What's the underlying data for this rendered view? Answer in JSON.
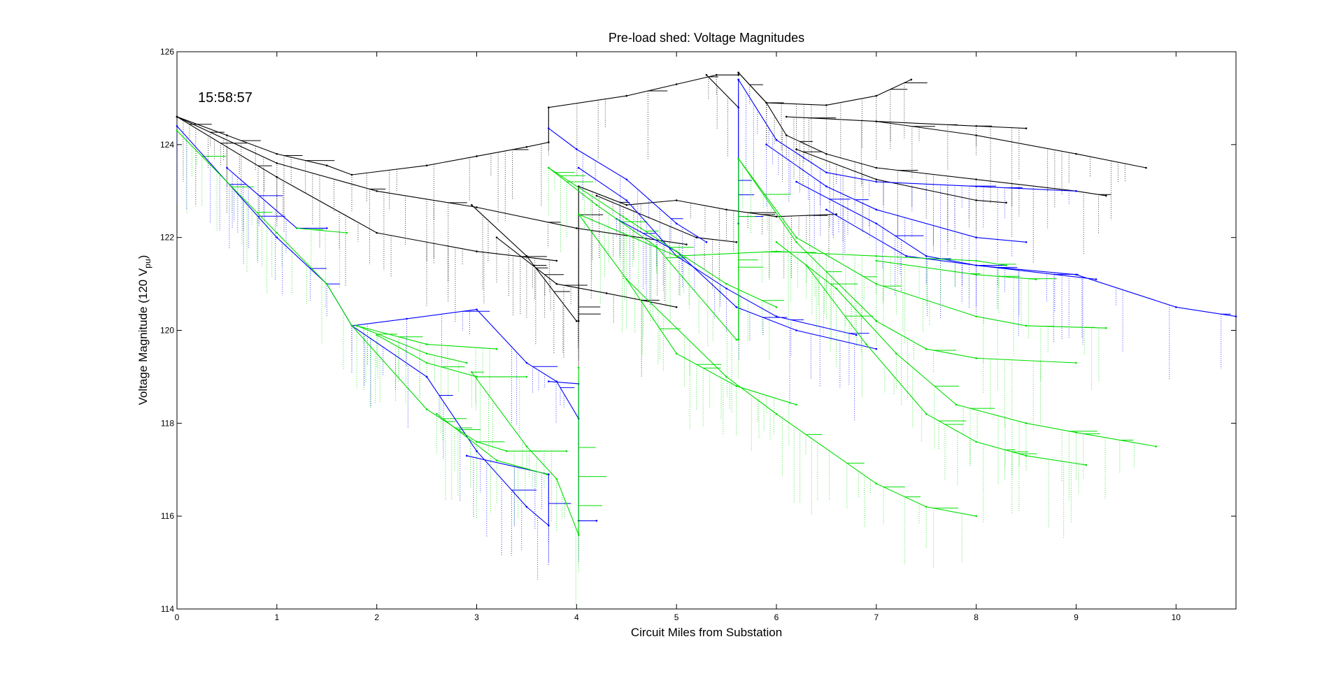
{
  "chart_data": {
    "type": "line",
    "title": "Pre-load shed:  Voltage Magnitudes",
    "xlabel": "Circuit Miles from Substation",
    "ylabel_main": "Voltage Magnitude (120 V",
    "ylabel_sub": "pu",
    "ylabel_end": ")",
    "annotation": "15:58:57",
    "xlim": [
      0,
      10.6
    ],
    "ylim": [
      114,
      126
    ],
    "xticks": [
      0,
      1,
      2,
      3,
      4,
      5,
      6,
      7,
      8,
      9,
      10
    ],
    "yticks": [
      114,
      116,
      118,
      120,
      122,
      124,
      126
    ],
    "colors": {
      "black": "#000000",
      "blue": "#0000ff",
      "green": "#00dd00"
    },
    "series": [
      {
        "color": "black",
        "points": [
          [
            0,
            124.6
          ],
          [
            0.5,
            124.2
          ],
          [
            1,
            123.8
          ],
          [
            1.5,
            123.55
          ],
          [
            1.75,
            123.35
          ],
          [
            2.5,
            123.55
          ],
          [
            3,
            123.75
          ],
          [
            3.5,
            123.95
          ],
          [
            3.72,
            124.05
          ],
          [
            3.72,
            124.8
          ],
          [
            4.5,
            125.05
          ],
          [
            5,
            125.3
          ],
          [
            5.4,
            125.5
          ],
          [
            5.62,
            125.5
          ],
          [
            5.62,
            125.55
          ]
        ]
      },
      {
        "color": "black",
        "points": [
          [
            5.3,
            125.5
          ],
          [
            5.62,
            124.8
          ]
        ]
      },
      {
        "color": "black",
        "points": [
          [
            5.62,
            125.55
          ],
          [
            5.9,
            124.9
          ],
          [
            6.5,
            124.85
          ],
          [
            7,
            125.05
          ],
          [
            7.35,
            125.4
          ]
        ]
      },
      {
        "color": "black",
        "points": [
          [
            5.62,
            125.55
          ],
          [
            5.9,
            124.9
          ],
          [
            6.1,
            124.2
          ],
          [
            6.5,
            123.8
          ],
          [
            7,
            123.5
          ],
          [
            8,
            123.25
          ],
          [
            9,
            123.0
          ],
          [
            9.3,
            122.9
          ]
        ]
      },
      {
        "color": "black",
        "points": [
          [
            6.1,
            124.6
          ],
          [
            7,
            124.5
          ],
          [
            8,
            124.4
          ],
          [
            8.5,
            124.35
          ]
        ]
      },
      {
        "color": "black",
        "points": [
          [
            7,
            124.5
          ],
          [
            8,
            124.2
          ],
          [
            9,
            123.8
          ],
          [
            9.7,
            123.5
          ]
        ]
      },
      {
        "color": "black",
        "points": [
          [
            6.2,
            123.9
          ],
          [
            7,
            123.25
          ],
          [
            8,
            122.8
          ],
          [
            8.3,
            122.75
          ]
        ]
      },
      {
        "color": "black",
        "points": [
          [
            0,
            124.6
          ],
          [
            1,
            123.6
          ],
          [
            2,
            123.0
          ],
          [
            3,
            122.65
          ],
          [
            4,
            122.2
          ],
          [
            5.1,
            121.85
          ]
        ]
      },
      {
        "color": "black",
        "points": [
          [
            0,
            124.6
          ],
          [
            1,
            123.3
          ],
          [
            2,
            122.1
          ],
          [
            3,
            121.7
          ],
          [
            3.8,
            121.5
          ]
        ]
      },
      {
        "color": "black",
        "points": [
          [
            2.95,
            122.7
          ],
          [
            3.5,
            121.6
          ],
          [
            4.0,
            120.2
          ]
        ]
      },
      {
        "color": "black",
        "points": [
          [
            3.2,
            122.0
          ],
          [
            3.8,
            121.0
          ],
          [
            4.3,
            120.8
          ],
          [
            5.0,
            120.5
          ]
        ]
      },
      {
        "color": "black",
        "points": [
          [
            4.02,
            120.2
          ],
          [
            4.02,
            123.1
          ],
          [
            4.5,
            122.7
          ],
          [
            5,
            122.8
          ],
          [
            5.5,
            122.6
          ],
          [
            6,
            122.45
          ],
          [
            6.6,
            122.5
          ]
        ]
      },
      {
        "color": "black",
        "points": [
          [
            4.2,
            122.9
          ],
          [
            5.2,
            122.0
          ],
          [
            5.6,
            121.9
          ]
        ]
      },
      {
        "color": "blue",
        "points": [
          [
            0,
            124.4
          ],
          [
            1,
            122.0
          ],
          [
            1.5,
            121.0
          ],
          [
            1.75,
            120.1
          ],
          [
            2.5,
            119.0
          ],
          [
            3,
            117.4
          ],
          [
            3.5,
            116.2
          ],
          [
            3.72,
            115.8
          ],
          [
            3.72,
            116.9
          ]
        ]
      },
      {
        "color": "blue",
        "points": [
          [
            0.5,
            123.5
          ],
          [
            1.2,
            122.2
          ],
          [
            1.5,
            122.2
          ]
        ]
      },
      {
        "color": "blue",
        "points": [
          [
            1.75,
            120.1
          ],
          [
            2.3,
            120.25
          ],
          [
            3,
            120.45
          ],
          [
            3.5,
            119.3
          ],
          [
            3.8,
            118.9
          ],
          [
            4.02,
            118.1
          ]
        ]
      },
      {
        "color": "blue",
        "points": [
          [
            2.9,
            117.3
          ],
          [
            3.72,
            116.9
          ]
        ]
      },
      {
        "color": "blue",
        "points": [
          [
            3.72,
            118.9
          ],
          [
            4.02,
            118.85
          ],
          [
            4.02,
            115.9
          ],
          [
            4.2,
            115.9
          ]
        ]
      },
      {
        "color": "blue",
        "points": [
          [
            3.72,
            124.35
          ],
          [
            4.0,
            123.9
          ],
          [
            4.5,
            123.25
          ],
          [
            5,
            122.3
          ],
          [
            5.3,
            121.9
          ]
        ]
      },
      {
        "color": "blue",
        "points": [
          [
            4.02,
            123.5
          ],
          [
            4.5,
            122.8
          ],
          [
            5,
            121.6
          ],
          [
            5.5,
            120.9
          ],
          [
            6,
            120.3
          ],
          [
            6.8,
            119.9
          ]
        ]
      },
      {
        "color": "blue",
        "points": [
          [
            4.4,
            122.4
          ],
          [
            5,
            121.7
          ],
          [
            5.6,
            120.5
          ],
          [
            6.2,
            120.0
          ],
          [
            7,
            119.6
          ]
        ]
      },
      {
        "color": "blue",
        "points": [
          [
            5.62,
            125.4
          ],
          [
            5.62,
            122.3
          ]
        ]
      },
      {
        "color": "blue",
        "points": [
          [
            5.62,
            125.4
          ],
          [
            6.0,
            124.1
          ],
          [
            6.5,
            123.4
          ],
          [
            7,
            123.2
          ],
          [
            8,
            123.1
          ],
          [
            9,
            123.0
          ]
        ]
      },
      {
        "color": "blue",
        "points": [
          [
            5.9,
            124.0
          ],
          [
            6.5,
            123.1
          ],
          [
            7,
            122.6
          ],
          [
            8,
            122.0
          ],
          [
            8.5,
            121.9
          ]
        ]
      },
      {
        "color": "blue",
        "points": [
          [
            6.2,
            123.2
          ],
          [
            7,
            122.3
          ],
          [
            7.5,
            121.6
          ],
          [
            8,
            121.4
          ],
          [
            9,
            121.2
          ],
          [
            10,
            120.5
          ],
          [
            10.6,
            120.3
          ]
        ]
      },
      {
        "color": "blue",
        "points": [
          [
            6.5,
            122.6
          ],
          [
            7.3,
            121.6
          ],
          [
            8,
            121.4
          ],
          [
            9.2,
            121.1
          ]
        ]
      },
      {
        "color": "green",
        "points": [
          [
            0,
            124.3
          ],
          [
            1,
            122.1
          ],
          [
            1.5,
            121.0
          ],
          [
            1.75,
            120.1
          ],
          [
            2.5,
            118.3
          ],
          [
            3,
            117.6
          ],
          [
            3.3,
            117.4
          ],
          [
            3.9,
            117.4
          ]
        ]
      },
      {
        "color": "green",
        "points": [
          [
            1.2,
            122.2
          ],
          [
            1.7,
            122.1
          ]
        ]
      },
      {
        "color": "green",
        "points": [
          [
            1.8,
            120.1
          ],
          [
            2.5,
            119.7
          ],
          [
            3.2,
            119.6
          ]
        ]
      },
      {
        "color": "green",
        "points": [
          [
            1.8,
            120.1
          ],
          [
            2.5,
            119.5
          ],
          [
            2.9,
            119.3
          ]
        ]
      },
      {
        "color": "green",
        "points": [
          [
            2.0,
            119.9
          ],
          [
            2.5,
            119.3
          ],
          [
            3.0,
            119.0
          ],
          [
            3.5,
            119.0
          ]
        ]
      },
      {
        "color": "green",
        "points": [
          [
            2.95,
            119.1
          ],
          [
            3.5,
            117.5
          ],
          [
            3.8,
            116.8
          ],
          [
            4.02,
            115.6
          ],
          [
            4.02,
            119.2
          ]
        ]
      },
      {
        "color": "green",
        "points": [
          [
            2.6,
            118.2
          ],
          [
            3.2,
            117.2
          ],
          [
            3.7,
            116.9
          ]
        ]
      },
      {
        "color": "green",
        "points": [
          [
            3.72,
            123.5
          ],
          [
            4.5,
            122.4
          ],
          [
            5,
            121.7
          ],
          [
            5.5,
            121.0
          ],
          [
            6,
            120.5
          ]
        ]
      },
      {
        "color": "green",
        "points": [
          [
            3.72,
            123.5
          ],
          [
            4.2,
            122.7
          ],
          [
            4.8,
            121.8
          ],
          [
            5.6,
            119.8
          ],
          [
            5.62,
            119.8
          ],
          [
            5.62,
            123.7
          ]
        ]
      },
      {
        "color": "green",
        "points": [
          [
            4.02,
            122.5
          ],
          [
            5,
            121.6
          ],
          [
            6,
            121.7
          ],
          [
            7,
            121.6
          ],
          [
            8,
            121.5
          ],
          [
            8.3,
            121.4
          ]
        ]
      },
      {
        "color": "green",
        "points": [
          [
            4.02,
            122.5
          ],
          [
            4.5,
            121.1
          ],
          [
            5,
            119.5
          ],
          [
            5.6,
            118.8
          ],
          [
            6.2,
            118.4
          ]
        ]
      },
      {
        "color": "green",
        "points": [
          [
            4.5,
            121.1
          ],
          [
            5.5,
            119.0
          ],
          [
            6,
            118.2
          ],
          [
            7,
            116.7
          ],
          [
            7.5,
            116.2
          ],
          [
            8,
            116.0
          ]
        ]
      },
      {
        "color": "green",
        "points": [
          [
            5.62,
            123.7
          ],
          [
            6.2,
            122.0
          ],
          [
            7,
            121.0
          ],
          [
            8,
            120.3
          ],
          [
            8.5,
            120.1
          ],
          [
            9.3,
            120.05
          ]
        ]
      },
      {
        "color": "green",
        "points": [
          [
            5.62,
            123.7
          ],
          [
            6.2,
            121.9
          ],
          [
            7,
            120.2
          ],
          [
            7.5,
            119.6
          ],
          [
            8,
            119.4
          ],
          [
            9,
            119.3
          ]
        ]
      },
      {
        "color": "green",
        "points": [
          [
            6,
            121.9
          ],
          [
            6.6,
            120.9
          ],
          [
            7.2,
            119.5
          ],
          [
            7.8,
            118.4
          ],
          [
            8.5,
            118.0
          ],
          [
            9,
            117.8
          ],
          [
            9.8,
            117.5
          ]
        ]
      },
      {
        "color": "green",
        "points": [
          [
            6.3,
            121.4
          ],
          [
            6.9,
            119.7
          ],
          [
            7.5,
            118.2
          ],
          [
            8,
            117.6
          ],
          [
            8.5,
            117.3
          ],
          [
            9.1,
            117.1
          ]
        ]
      },
      {
        "color": "green",
        "points": [
          [
            7,
            121.5
          ],
          [
            8,
            121.2
          ],
          [
            8.6,
            121.1
          ]
        ]
      }
    ]
  }
}
